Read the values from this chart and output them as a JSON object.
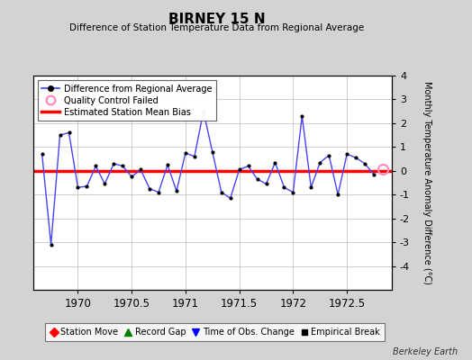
{
  "title": "BIRNEY 15 N",
  "subtitle": "Difference of Station Temperature Data from Regional Average",
  "ylabel_right": "Monthly Temperature Anomaly Difference (°C)",
  "xlim": [
    1969.5833,
    1972.9167
  ],
  "ylim": [
    -5,
    4
  ],
  "yticks": [
    -4,
    -3,
    -2,
    -1,
    0,
    1,
    2,
    3,
    4
  ],
  "xticks": [
    1970,
    1970.5,
    1971,
    1971.5,
    1972,
    1972.5
  ],
  "xticklabels": [
    "1970",
    "1970.5",
    "1971",
    "1971.5",
    "1972",
    "1972.5"
  ],
  "background_color": "#d3d3d3",
  "plot_bg_color": "#ffffff",
  "grid_color": "#bbbbbb",
  "mean_bias": 0.0,
  "x_data": [
    1969.6667,
    1969.75,
    1969.8333,
    1969.9167,
    1970.0,
    1970.0833,
    1970.1667,
    1970.25,
    1970.3333,
    1970.4167,
    1970.5,
    1970.5833,
    1970.6667,
    1970.75,
    1970.8333,
    1970.9167,
    1971.0,
    1971.0833,
    1971.1667,
    1971.25,
    1971.3333,
    1971.4167,
    1971.5,
    1971.5833,
    1971.6667,
    1971.75,
    1971.8333,
    1971.9167,
    1972.0,
    1972.0833,
    1972.1667,
    1972.25,
    1972.3333,
    1972.4167,
    1972.5,
    1972.5833,
    1972.6667,
    1972.75
  ],
  "y_data": [
    0.7,
    -3.1,
    1.5,
    1.6,
    -0.7,
    -0.65,
    0.2,
    -0.55,
    0.3,
    0.2,
    -0.25,
    0.05,
    -0.75,
    -0.9,
    0.25,
    -0.85,
    0.75,
    0.6,
    2.5,
    0.8,
    -0.9,
    -1.15,
    0.05,
    0.2,
    -0.35,
    -0.55,
    0.35,
    -0.7,
    -0.9,
    2.3,
    -0.7,
    0.35,
    0.65,
    -1.0,
    0.7,
    0.55,
    0.3,
    -0.15
  ],
  "qc_x": [
    1972.8333
  ],
  "qc_y": [
    0.05
  ],
  "line_color": "#4444ff",
  "marker_color": "#000000",
  "bias_color": "#ff0000",
  "qc_color": "#ff88bb",
  "watermark": "Berkeley Earth",
  "legend1_labels": [
    "Difference from Regional Average",
    "Quality Control Failed",
    "Estimated Station Mean Bias"
  ],
  "legend2_labels": [
    "Station Move",
    "Record Gap",
    "Time of Obs. Change",
    "Empirical Break"
  ]
}
